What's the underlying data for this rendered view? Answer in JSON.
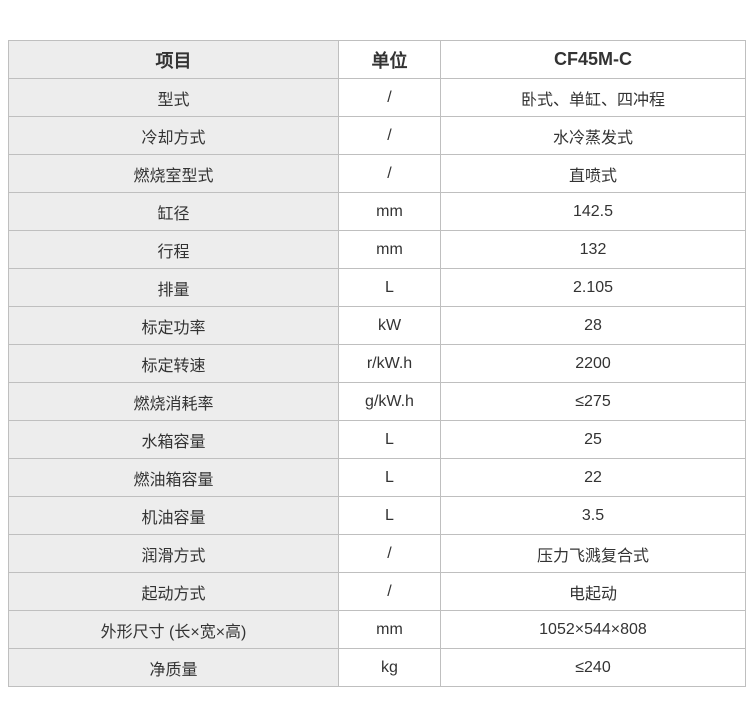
{
  "colors": {
    "first_column_bg": "#ededed",
    "border": "#bfbfbf",
    "text": "#333333",
    "page_bg": "#ffffff"
  },
  "table": {
    "headers": [
      "项目",
      "单位",
      "CF45M-C"
    ],
    "rows": [
      {
        "item": "型式",
        "unit": "/",
        "value": "卧式、单缸、四冲程"
      },
      {
        "item": "冷却方式",
        "unit": "/",
        "value": "水冷蒸发式"
      },
      {
        "item": "燃烧室型式",
        "unit": "/",
        "value": "直喷式"
      },
      {
        "item": "缸径",
        "unit": "mm",
        "value": "142.5"
      },
      {
        "item": "行程",
        "unit": "mm",
        "value": "132"
      },
      {
        "item": "排量",
        "unit": "L",
        "value": "2.105"
      },
      {
        "item": "标定功率",
        "unit": "kW",
        "value": "28"
      },
      {
        "item": "标定转速",
        "unit": "r/kW.h",
        "value": "2200"
      },
      {
        "item": "燃烧消耗率",
        "unit": "g/kW.h",
        "value": "≤275"
      },
      {
        "item": "水箱容量",
        "unit": "L",
        "value": "25"
      },
      {
        "item": "燃油箱容量",
        "unit": "L",
        "value": "22"
      },
      {
        "item": "机油容量",
        "unit": "L",
        "value": "3.5"
      },
      {
        "item": "润滑方式",
        "unit": "/",
        "value": "压力飞溅复合式"
      },
      {
        "item": "起动方式",
        "unit": "/",
        "value": "电起动"
      },
      {
        "item": "外形尺寸 (长×宽×高)",
        "unit": "mm",
        "value": "1052×544×808"
      },
      {
        "item": "净质量",
        "unit": "kg",
        "value": "≤240"
      }
    ]
  }
}
